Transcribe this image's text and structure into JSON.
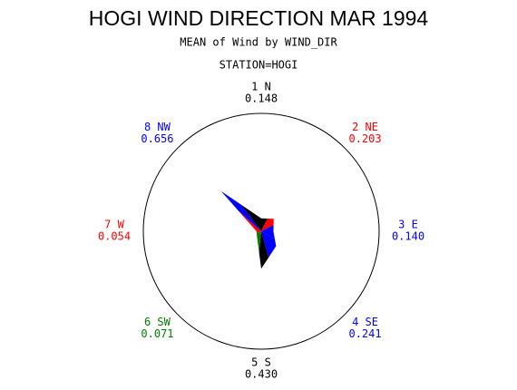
{
  "chart_data": {
    "type": "star",
    "title": "HOGI WIND DIRECTION MAR 1994",
    "subtitle": "MEAN of Wind by WIND_DIR",
    "station": "STATION=HOGI",
    "categories": [
      "1 N",
      "2 NE",
      "3 E",
      "4 SE",
      "5 S",
      "6 SW",
      "7 W",
      "8 NW"
    ],
    "values": [
      0.148,
      0.203,
      0.14,
      0.241,
      0.43,
      0.071,
      0.054,
      0.656
    ],
    "value_labels": [
      "0.148",
      "0.203",
      "0.140",
      "0.241",
      "0.430",
      "0.071",
      "0.054",
      "0.656"
    ],
    "colors": [
      "#000000",
      "#ff0000",
      "#0000ff",
      "#0000ff",
      "#000000",
      "#008000",
      "#ff0000",
      "#0000ff"
    ]
  }
}
